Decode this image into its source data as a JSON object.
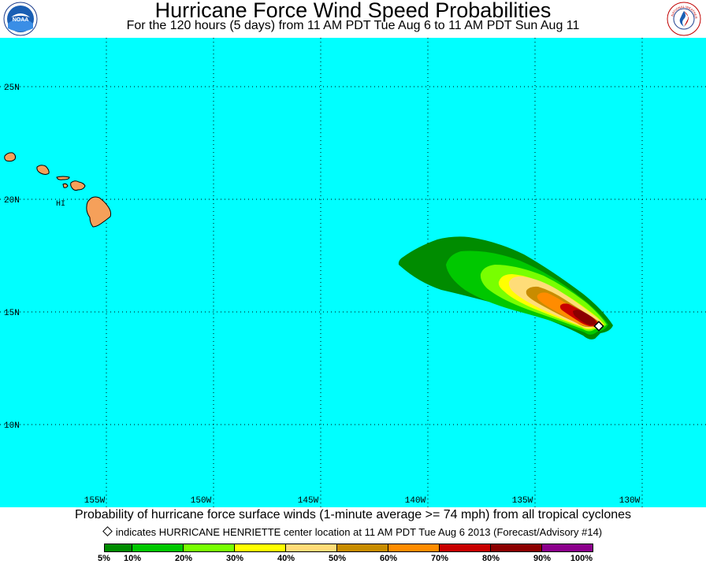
{
  "header": {
    "title": "Hurricane Force Wind Speed Probabilities",
    "subtitle": "For the 120 hours (5 days) from 11 AM PDT Tue Aug 6 to 11 AM PDT Sun Aug 11",
    "left_logo": "NOAA",
    "right_logo": "NATIONAL WEATHER SERVICE"
  },
  "map": {
    "background_color": "#00ffff",
    "land_color": "#f5a05a",
    "label_islands": "HI",
    "lat_labels": [
      "25N",
      "20N",
      "15N",
      "10N"
    ],
    "lon_labels": [
      "155W",
      "150W",
      "145W",
      "140W",
      "135W",
      "130W"
    ],
    "storm_center": {
      "name": "HURRICANE HENRIETTE",
      "lat": 14.5,
      "lon": -131.6
    }
  },
  "footer": {
    "caption": "Probability of hurricane force surface winds (1-minute average >= 74 mph) from all tropical cyclones",
    "indicator": "indicates HURRICANE HENRIETTE center location at 11 AM PDT Tue Aug 6 2013 (Forecast/Advisory #14)"
  },
  "legend": {
    "ticks": [
      "5%",
      "10%",
      "20%",
      "30%",
      "40%",
      "50%",
      "60%",
      "70%",
      "80%",
      "90%",
      "100%"
    ],
    "colors": [
      "#008c00",
      "#00c800",
      "#78ff00",
      "#ffff00",
      "#ffdc78",
      "#c88c00",
      "#ff8c00",
      "#c80000",
      "#8c0000",
      "#8c008c"
    ]
  }
}
